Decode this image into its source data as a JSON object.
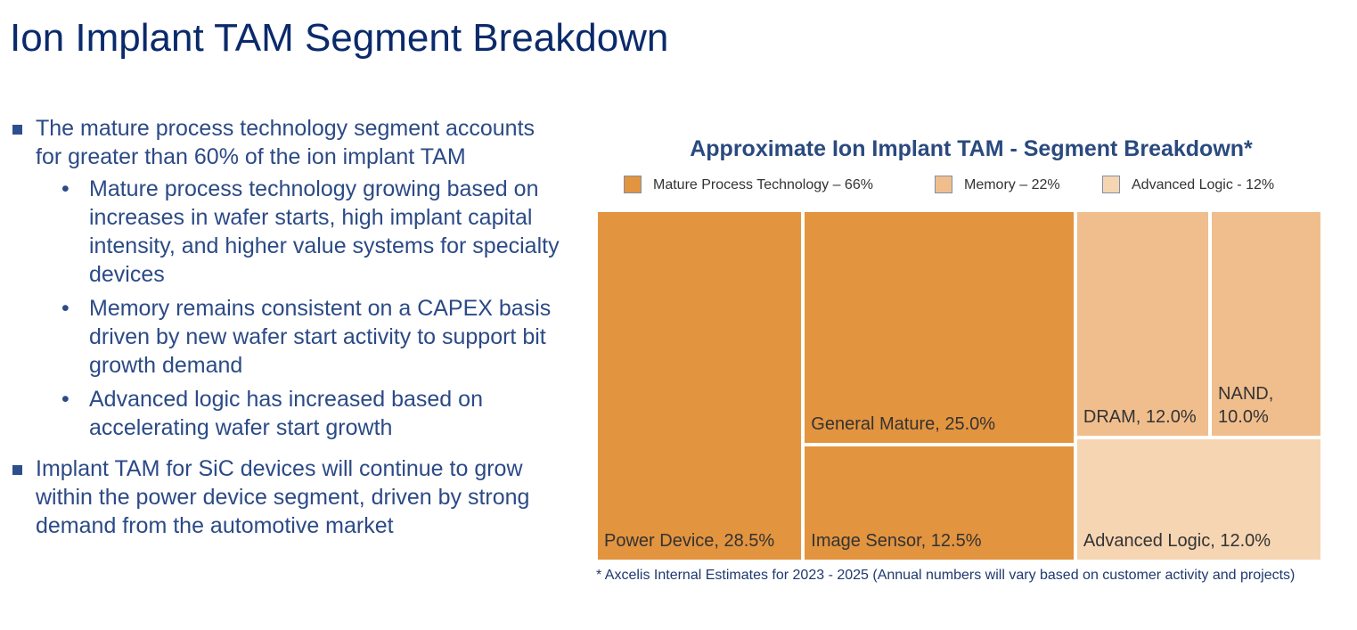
{
  "page": {
    "title": "Ion Implant TAM Segment Breakdown",
    "bullets": [
      {
        "text": "The mature process technology segment accounts for greater than 60% of the ion implant TAM",
        "sub": [
          "Mature process technology growing based on increases in wafer starts, high implant capital intensity, and higher value systems for specialty devices",
          "Memory remains consistent on a CAPEX basis driven by new wafer start activity to support bit growth demand",
          "Advanced logic has increased based on accelerating wafer start growth"
        ]
      },
      {
        "text": "Implant TAM for SiC devices will continue to grow within the power device segment, driven by strong demand from the automotive market",
        "sub": []
      }
    ]
  },
  "chart_data": {
    "type": "treemap",
    "title": "Approximate Ion Implant TAM - Segment Breakdown*",
    "legend": [
      {
        "label": "Mature Process Technology – 66%",
        "color": "#e3943f"
      },
      {
        "label": "Memory – 22%",
        "color": "#f0be8d"
      },
      {
        "label": "Advanced Logic - 12%",
        "color": "#f6d5b3"
      }
    ],
    "segments": [
      {
        "group": "Mature Process Technology",
        "name": "Power Device",
        "value": 28.5,
        "label": "Power Device, 28.5%",
        "color": "#e3943f"
      },
      {
        "group": "Mature Process Technology",
        "name": "General Mature",
        "value": 25.0,
        "label": "General Mature, 25.0%",
        "color": "#e3943f"
      },
      {
        "group": "Mature Process Technology",
        "name": "Image Sensor",
        "value": 12.5,
        "label": "Image Sensor, 12.5%",
        "color": "#e3943f"
      },
      {
        "group": "Memory",
        "name": "DRAM",
        "value": 12.0,
        "label": "DRAM, 12.0%",
        "color": "#f0be8d"
      },
      {
        "group": "Memory",
        "name": "NAND",
        "value": 10.0,
        "label": "NAND,\n10.0%",
        "color": "#f0be8d"
      },
      {
        "group": "Advanced Logic",
        "name": "Advanced Logic",
        "value": 12.0,
        "label": "Advanced Logic, 12.0%",
        "color": "#f6d5b3"
      }
    ],
    "footnote": "* Axcelis Internal Estimates for 2023 - 2025 (Annual numbers will vary based on customer activity and projects)"
  }
}
